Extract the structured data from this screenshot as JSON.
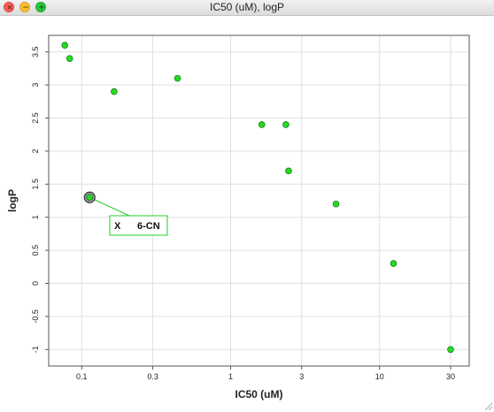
{
  "window": {
    "title": "IC50 (uM), logP",
    "controls": [
      {
        "name": "close",
        "glyph": "×",
        "color": "#fc5f57"
      },
      {
        "name": "minimize",
        "glyph": "−",
        "color": "#fdbc2e"
      },
      {
        "name": "maximize",
        "glyph": "+",
        "color": "#28c840"
      }
    ]
  },
  "chart_data": {
    "type": "scatter",
    "title": "",
    "xlabel": "IC50 (uM)",
    "ylabel": "logP",
    "x_scale": "log",
    "xlim": [
      0.06,
      40
    ],
    "ylim": [
      -1.25,
      3.75
    ],
    "x_ticks": [
      0.1,
      0.3,
      1,
      3,
      10,
      30
    ],
    "x_tick_labels": [
      "0.1",
      "0.3",
      "1",
      "3",
      "10",
      "30"
    ],
    "y_ticks": [
      -1,
      -0.5,
      0,
      0.5,
      1,
      1.5,
      2,
      2.5,
      3,
      3.5
    ],
    "y_tick_labels": [
      "-1",
      "-0.5",
      "0",
      "0.5",
      "1",
      "1.5",
      "2",
      "2.5",
      "3",
      "3.5"
    ],
    "grid": true,
    "point_color": "#22dd22",
    "points": [
      {
        "x": 0.077,
        "y": 3.6
      },
      {
        "x": 0.083,
        "y": 3.4
      },
      {
        "x": 0.165,
        "y": 2.9
      },
      {
        "x": 0.44,
        "y": 3.1
      },
      {
        "x": 1.62,
        "y": 2.4
      },
      {
        "x": 2.35,
        "y": 2.4
      },
      {
        "x": 2.45,
        "y": 1.7
      },
      {
        "x": 5.1,
        "y": 1.2
      },
      {
        "x": 12.4,
        "y": 0.3
      },
      {
        "x": 30,
        "y": -1.0
      },
      {
        "x": 0.113,
        "y": 1.3
      }
    ],
    "annotation": {
      "point_index": 10,
      "col1": "X",
      "col2": "6-CN",
      "border_color": "#22cc22"
    }
  }
}
